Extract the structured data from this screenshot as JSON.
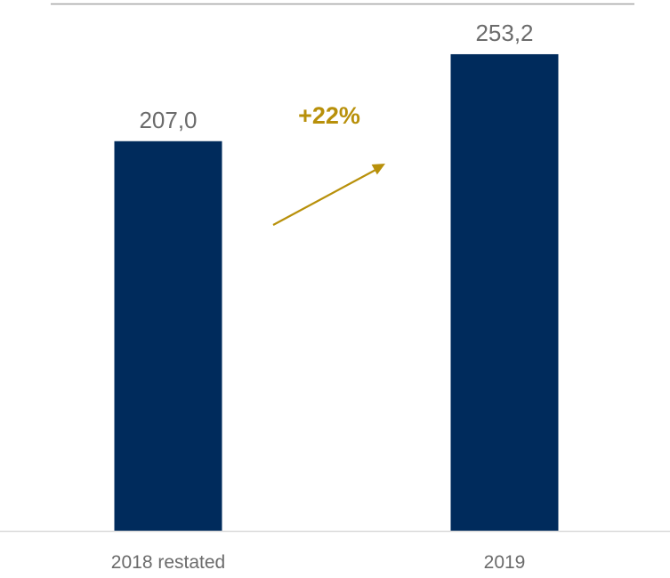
{
  "chart_data": {
    "type": "bar",
    "title": "",
    "xlabel": "",
    "ylabel": "",
    "categories": [
      "2018 restated",
      "2019"
    ],
    "values": [
      207.0,
      253.2
    ],
    "value_labels": [
      "207,0",
      "253,2"
    ],
    "ylim": [
      0,
      282
    ],
    "grid": false,
    "legend": "none",
    "annotation": {
      "text": "+22%",
      "from_category": "2018 restated",
      "to_category": "2019"
    },
    "colors": {
      "bar": "#002b5c",
      "value_label": "#6b6b6b",
      "category_label": "#6b6b6b",
      "annotation": "#b8900a",
      "top_rule": "#a6a6a6",
      "baseline": "#d9d9d9"
    }
  }
}
